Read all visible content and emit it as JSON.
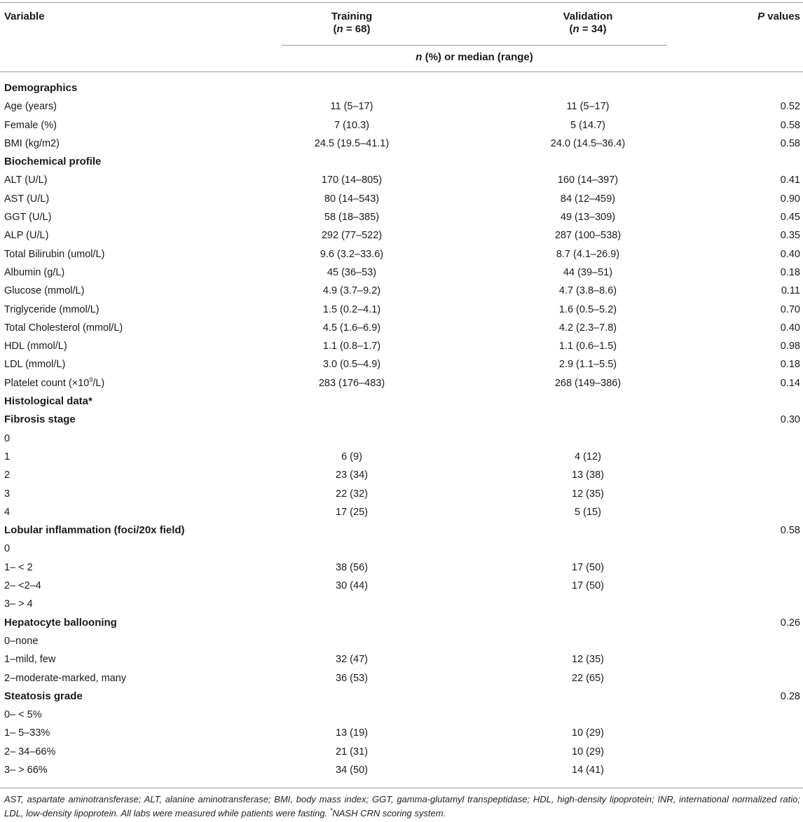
{
  "header": {
    "variable": "Variable",
    "training": {
      "label": "Training",
      "n_prefix": "(",
      "n_var": "n",
      "n_suffix": " = 68)"
    },
    "validation": {
      "label": "Validation",
      "n_prefix": "(",
      "n_var": "n",
      "n_suffix": " = 34)"
    },
    "p_values": {
      "p": "P",
      "rest": " values"
    },
    "unit": {
      "n": "n",
      "rest": " (%) or median (range)"
    }
  },
  "rows": [
    {
      "label": "Demographics",
      "section": true,
      "train": "",
      "valid": "",
      "p": ""
    },
    {
      "label": "Age (years)",
      "train": "11 (5–17)",
      "valid": "11 (5–17)",
      "p": "0.52"
    },
    {
      "label": "Female (%)",
      "train": "7 (10.3)",
      "valid": "5 (14.7)",
      "p": "0.58"
    },
    {
      "label": "BMI (kg/m2)",
      "train": "24.5 (19.5–41.1)",
      "valid": "24.0 (14.5–36.4)",
      "p": "0.58"
    },
    {
      "label": "Biochemical profile",
      "section": true,
      "train": "",
      "valid": "",
      "p": ""
    },
    {
      "label": "ALT (U/L)",
      "train": "170 (14–805)",
      "valid": "160 (14–397)",
      "p": "0.41"
    },
    {
      "label": "AST (U/L)",
      "train": "80 (14–543)",
      "valid": "84 (12–459)",
      "p": "0.90"
    },
    {
      "label": "GGT (U/L)",
      "train": "58 (18–385)",
      "valid": "49 (13–309)",
      "p": "0.45"
    },
    {
      "label": "ALP (U/L)",
      "train": "292 (77–522)",
      "valid": "287 (100–538)",
      "p": "0.35"
    },
    {
      "label": "Total Bilirubin (umol/L)",
      "train": "9.6 (3.2–33.6)",
      "valid": "8.7 (4.1–26.9)",
      "p": "0.40"
    },
    {
      "label": "Albumin (g/L)",
      "train": "45 (36–53)",
      "valid": "44 (39–51)",
      "p": "0.18"
    },
    {
      "label": "Glucose (mmol/L)",
      "train": "4.9 (3.7–9.2)",
      "valid": "4.7 (3.8–8.6)",
      "p": "0.11"
    },
    {
      "label": "Triglyceride (mmol/L)",
      "train": "1.5 (0.2–4.1)",
      "valid": "1.6 (0.5–5.2)",
      "p": "0.70"
    },
    {
      "label": "Total Cholesterol (mmol/L)",
      "train": "4.5 (1.6–6.9)",
      "valid": "4.2 (2.3–7.8)",
      "p": "0.40"
    },
    {
      "label": "HDL (mmol/L)",
      "train": "1.1 (0.8–1.7)",
      "valid": "1.1 (0.6–1.5)",
      "p": "0.98"
    },
    {
      "label": "LDL (mmol/L)",
      "train": "3.0 (0.5–4.9)",
      "valid": "2.9 (1.1–5.5)",
      "p": "0.18"
    },
    {
      "label": "Platelet count (×10",
      "label_sup": "9",
      "label_after": "/L)",
      "train": "283 (176–483)",
      "valid": "268 (149–386)",
      "p": "0.14"
    },
    {
      "label": "Histological data*",
      "section": true,
      "train": "",
      "valid": "",
      "p": ""
    },
    {
      "label": "Fibrosis stage",
      "section": true,
      "train": "",
      "valid": "",
      "p": "0.30"
    },
    {
      "label": "0",
      "train": "",
      "valid": "",
      "p": ""
    },
    {
      "label": "1",
      "train": "6 (9)",
      "valid": "4 (12)",
      "p": ""
    },
    {
      "label": "2",
      "train": "23 (34)",
      "valid": "13 (38)",
      "p": ""
    },
    {
      "label": "3",
      "train": "22 (32)",
      "valid": "12 (35)",
      "p": ""
    },
    {
      "label": "4",
      "train": "17 (25)",
      "valid": "5 (15)",
      "p": ""
    },
    {
      "label": "Lobular inflammation (foci/20x field)",
      "section": true,
      "train": "",
      "valid": "",
      "p": "0.58"
    },
    {
      "label": "0",
      "train": "",
      "valid": "",
      "p": ""
    },
    {
      "label": "1– < 2",
      "train": "38 (56)",
      "valid": "17 (50)",
      "p": ""
    },
    {
      "label": "2– <2–4",
      "train": "30 (44)",
      "valid": "17 (50)",
      "p": ""
    },
    {
      "label": "3– > 4",
      "train": "",
      "valid": "",
      "p": ""
    },
    {
      "label": "Hepatocyte ballooning",
      "section": true,
      "train": "",
      "valid": "",
      "p": "0.26"
    },
    {
      "label": "0–none",
      "train": "",
      "valid": "",
      "p": ""
    },
    {
      "label": "1–mild, few",
      "train": "32 (47)",
      "valid": "12 (35)",
      "p": ""
    },
    {
      "label": "2–moderate-marked, many",
      "train": "36 (53)",
      "valid": "22 (65)",
      "p": ""
    },
    {
      "label": "Steatosis grade",
      "section": true,
      "train": "",
      "valid": "",
      "p": "0.28"
    },
    {
      "label": "0– < 5%",
      "train": "",
      "valid": "",
      "p": ""
    },
    {
      "label": "1– 5–33%",
      "train": "13 (19)",
      "valid": "10 (29)",
      "p": ""
    },
    {
      "label": "2– 34–66%",
      "train": "21 (31)",
      "valid": "10 (29)",
      "p": ""
    },
    {
      "label": "3– > 66%",
      "train": "34 (50)",
      "valid": "14 (41)",
      "p": ""
    }
  ],
  "footnote": {
    "main": "AST, aspartate aminotransferase; ALT, alanine aminotransferase; BMI, body mass index; GGT, gamma-glutamyl transpeptidase; HDL, high-density lipoprotein; INR, international normalized ratio; LDL, low-density lipoprotein. All labs were measured while patients were fasting. ",
    "mark": "*",
    "note": "NASH CRN scoring system."
  }
}
